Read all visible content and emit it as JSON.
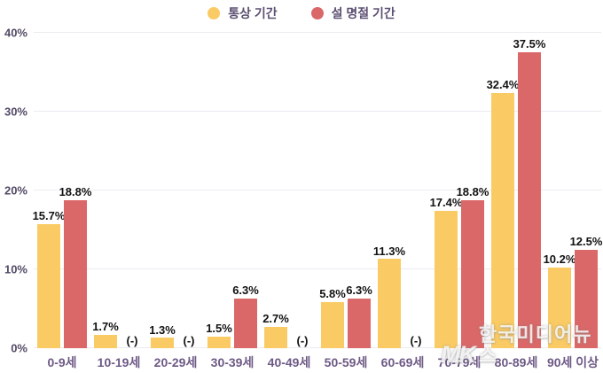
{
  "colors": {
    "series_normal": "#facb64",
    "series_holiday": "#db6868",
    "grid": "#eceaf0",
    "legend_text": "#5c4f72",
    "ytick_text": "#554b66",
    "category_text": "#6e5a86",
    "data_label_text": "#121212"
  },
  "legend": {
    "items": [
      {
        "label": "통상 기간",
        "color": "#facb64"
      },
      {
        "label": "설 명절 기간",
        "color": "#db6868"
      }
    ]
  },
  "watermark": {
    "logo": "MK",
    "text": "한국미디어뉴스"
  },
  "chart_data": {
    "type": "bar",
    "title": "",
    "xlabel": "",
    "ylabel": "",
    "categories": [
      "0-9세",
      "10-19세",
      "20-29세",
      "30-39세",
      "40-49세",
      "50-59세",
      "60-69세",
      "70-79세",
      "80-89세",
      "90세 이상"
    ],
    "series": [
      {
        "name": "통상 기간",
        "color": "#facb64",
        "values": [
          15.7,
          1.7,
          1.3,
          1.5,
          2.7,
          5.8,
          11.3,
          17.4,
          32.4,
          10.2
        ],
        "labels": [
          "15.7%",
          "1.7%",
          "1.3%",
          "1.5%",
          "2.7%",
          "5.8%",
          "11.3%",
          "17.4%",
          "32.4%",
          "10.2%"
        ]
      },
      {
        "name": "설 명절 기간",
        "color": "#db6868",
        "values": [
          18.8,
          null,
          null,
          6.3,
          null,
          6.3,
          null,
          18.8,
          37.5,
          12.5
        ],
        "labels": [
          "18.8%",
          "(-)",
          "(-)",
          "6.3%",
          "(-)",
          "6.3%",
          "(-)",
          "18.8%",
          "37.5%",
          "12.5%"
        ]
      }
    ],
    "ylim": [
      0,
      40
    ],
    "yticks": [
      0,
      10,
      20,
      30,
      40
    ],
    "ytick_labels": [
      "0%",
      "10%",
      "20%",
      "30%",
      "40%"
    ],
    "grid": true,
    "legend_position": "top"
  }
}
